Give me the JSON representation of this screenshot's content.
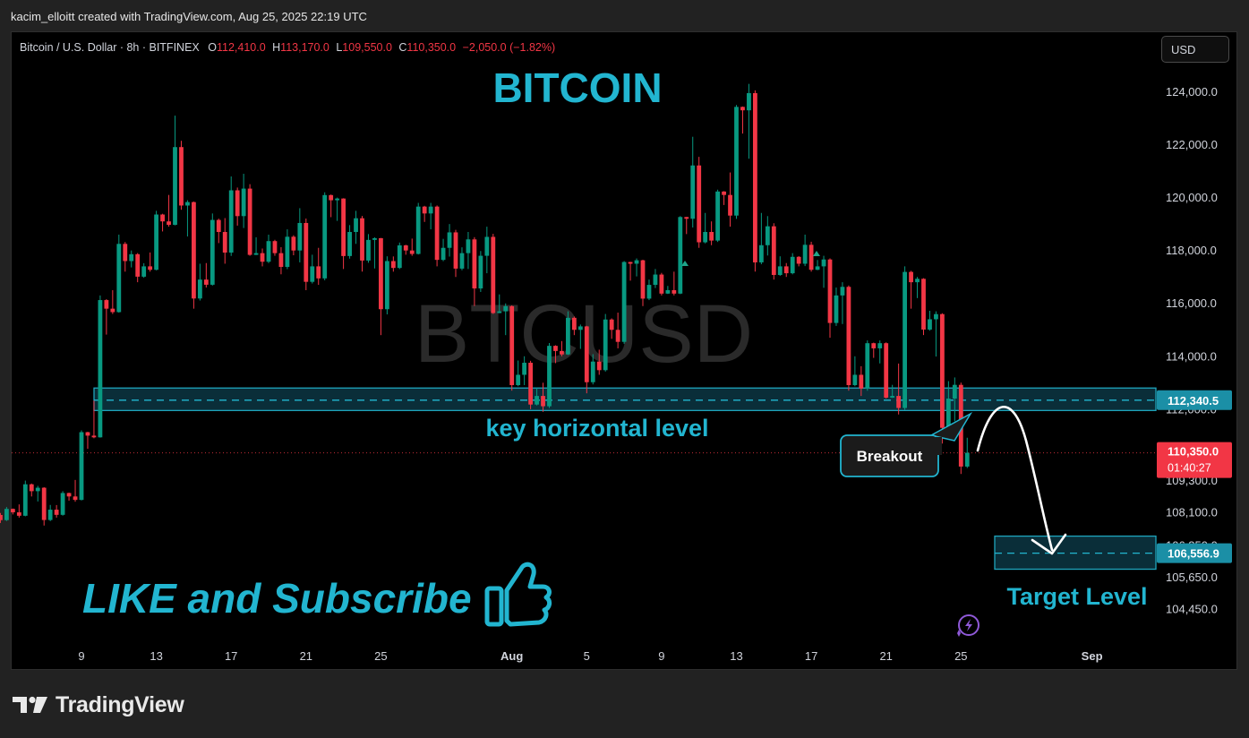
{
  "header": {
    "creator_line": "kacim_elloitt created with TradingView.com, Aug 25, 2025 22:19 UTC"
  },
  "legend": {
    "symbol": "Bitcoin / U.S. Dollar · 8h · BITFINEX",
    "open_label": "O",
    "open": "112,410.0",
    "high_label": "H",
    "high": "113,170.0",
    "low_label": "L",
    "low": "109,550.0",
    "close_label": "C",
    "close": "110,350.0",
    "change": "−2,050.0 (−1.82%)"
  },
  "currency_button": "USD",
  "annotations": {
    "title": "BITCOIN",
    "watermark": "BTCUSD",
    "key_level_label": "key horizontal level",
    "breakout_label": "Breakout",
    "target_label": "Target Level",
    "cta": "LIKE and Subscribe"
  },
  "price_tags": {
    "key_level": "112,340.5",
    "last_price": "110,350.0",
    "countdown": "01:40:27",
    "target": "106,556.9"
  },
  "footer": {
    "brand": "TradingView"
  },
  "colors": {
    "up": "#089981",
    "down": "#f23645",
    "accent": "#22b5d0",
    "zone_fill": "#0c3a47",
    "zone_border": "#1fa5bd"
  },
  "chart_data": {
    "type": "candlestick",
    "symbol": "BTCUSD",
    "interval": "8h",
    "y_axis": {
      "ticks": [
        124000,
        122000,
        120000,
        118000,
        116000,
        114000,
        112000,
        110500,
        109300,
        108100,
        106850,
        105650,
        104450
      ],
      "tick_labels": [
        "124,000.0",
        "122,000.0",
        "120,000.0",
        "118,000.0",
        "116,000.0",
        "114,000.0",
        "112,000.0",
        "110,500.0",
        "109,300.0",
        "108,100.0",
        "106,850.0",
        "105,650.0",
        "104,450.0"
      ],
      "range": [
        104000,
        125400
      ]
    },
    "x_axis": {
      "ticks": [
        "9",
        "13",
        "17",
        "21",
        "25",
        "Aug",
        "5",
        "9",
        "13",
        "17",
        "21",
        "25",
        "Sep"
      ],
      "range": [
        "Jul 5",
        "Sep 1"
      ]
    },
    "key_level": {
      "value": 112340.5,
      "zone": [
        111950,
        112800
      ]
    },
    "target_level": {
      "value": 106556.9,
      "zone": [
        105950,
        107200
      ]
    },
    "last_price": 110350.0,
    "candles_daily_approx": [
      {
        "date": "Jul 5",
        "open": 108000,
        "high": 108300,
        "low": 107700,
        "close": 108100
      },
      {
        "date": "Jul 6",
        "open": 108100,
        "high": 109300,
        "low": 107900,
        "close": 108900
      },
      {
        "date": "Jul 7",
        "open": 108900,
        "high": 109100,
        "low": 107600,
        "close": 108200
      },
      {
        "date": "Jul 8",
        "open": 108200,
        "high": 108900,
        "low": 107900,
        "close": 108700
      },
      {
        "date": "Jul 9",
        "open": 108700,
        "high": 111200,
        "low": 108500,
        "close": 111000
      },
      {
        "date": "Jul 10",
        "open": 111000,
        "high": 116300,
        "low": 110900,
        "close": 115800
      },
      {
        "date": "Jul 11",
        "open": 115800,
        "high": 118600,
        "low": 115600,
        "close": 117600
      },
      {
        "date": "Jul 12",
        "open": 117600,
        "high": 118000,
        "low": 116800,
        "close": 117400
      },
      {
        "date": "Jul 13",
        "open": 117400,
        "high": 119500,
        "low": 117200,
        "close": 119100
      },
      {
        "date": "Jul 14",
        "open": 119100,
        "high": 123100,
        "low": 118900,
        "close": 119700
      },
      {
        "date": "Jul 15",
        "open": 119700,
        "high": 119900,
        "low": 115800,
        "close": 116900
      },
      {
        "date": "Jul 16",
        "open": 116900,
        "high": 119400,
        "low": 116600,
        "close": 118700
      },
      {
        "date": "Jul 17",
        "open": 118700,
        "high": 120800,
        "low": 117500,
        "close": 119300
      },
      {
        "date": "Jul 18",
        "open": 119300,
        "high": 120900,
        "low": 117800,
        "close": 117900
      },
      {
        "date": "Jul 19",
        "open": 117900,
        "high": 118600,
        "low": 117400,
        "close": 117900
      },
      {
        "date": "Jul 20",
        "open": 117900,
        "high": 118800,
        "low": 117100,
        "close": 118000
      },
      {
        "date": "Jul 21",
        "open": 118000,
        "high": 119600,
        "low": 116500,
        "close": 117400
      },
      {
        "date": "Jul 22",
        "open": 117400,
        "high": 120200,
        "low": 116700,
        "close": 119900
      },
      {
        "date": "Jul 23",
        "open": 119900,
        "high": 120000,
        "low": 117300,
        "close": 118700
      },
      {
        "date": "Jul 24",
        "open": 118700,
        "high": 119500,
        "low": 117200,
        "close": 118400
      },
      {
        "date": "Jul 25",
        "open": 118400,
        "high": 118500,
        "low": 114800,
        "close": 117600
      },
      {
        "date": "Jul 26",
        "open": 117600,
        "high": 118300,
        "low": 117200,
        "close": 118000
      },
      {
        "date": "Jul 27",
        "open": 118000,
        "high": 119800,
        "low": 117800,
        "close": 119400
      },
      {
        "date": "Jul 28",
        "open": 119400,
        "high": 119800,
        "low": 117400,
        "close": 118100
      },
      {
        "date": "Jul 29",
        "open": 118100,
        "high": 119000,
        "low": 117000,
        "close": 117900
      },
      {
        "date": "Jul 30",
        "open": 117900,
        "high": 118700,
        "low": 115900,
        "close": 117800
      },
      {
        "date": "Jul 31",
        "open": 117800,
        "high": 118900,
        "low": 115600,
        "close": 115700
      },
      {
        "date": "Aug 1",
        "open": 115700,
        "high": 116000,
        "low": 112700,
        "close": 113300
      },
      {
        "date": "Aug 2",
        "open": 113300,
        "high": 114000,
        "low": 112000,
        "close": 112500
      },
      {
        "date": "Aug 3",
        "open": 112500,
        "high": 114500,
        "low": 111900,
        "close": 114200
      },
      {
        "date": "Aug 4",
        "open": 114200,
        "high": 115700,
        "low": 114000,
        "close": 115000
      },
      {
        "date": "Aug 5",
        "open": 115000,
        "high": 115200,
        "low": 112600,
        "close": 113800
      },
      {
        "date": "Aug 6",
        "open": 113800,
        "high": 115600,
        "low": 113300,
        "close": 115000
      },
      {
        "date": "Aug 7",
        "open": 115000,
        "high": 117600,
        "low": 114300,
        "close": 117500
      },
      {
        "date": "Aug 8",
        "open": 117500,
        "high": 117700,
        "low": 115900,
        "close": 116700
      },
      {
        "date": "Aug 9",
        "open": 116700,
        "high": 117300,
        "low": 116300,
        "close": 116500
      },
      {
        "date": "Aug 10",
        "open": 116500,
        "high": 119300,
        "low": 116300,
        "close": 119200
      },
      {
        "date": "Aug 11",
        "open": 119200,
        "high": 122300,
        "low": 118100,
        "close": 118700
      },
      {
        "date": "Aug 12",
        "open": 118700,
        "high": 120300,
        "low": 118200,
        "close": 120100
      },
      {
        "date": "Aug 13",
        "open": 120100,
        "high": 123500,
        "low": 118900,
        "close": 123300
      },
      {
        "date": "Aug 14",
        "open": 123300,
        "high": 124300,
        "low": 117200,
        "close": 118200
      },
      {
        "date": "Aug 15",
        "open": 118200,
        "high": 119300,
        "low": 116900,
        "close": 117400
      },
      {
        "date": "Aug 16",
        "open": 117400,
        "high": 117900,
        "low": 117000,
        "close": 117500
      },
      {
        "date": "Aug 17",
        "open": 117500,
        "high": 118600,
        "low": 117200,
        "close": 117400
      },
      {
        "date": "Aug 18",
        "open": 117400,
        "high": 117800,
        "low": 114700,
        "close": 116300
      },
      {
        "date": "Aug 19",
        "open": 116300,
        "high": 116800,
        "low": 112700,
        "close": 113300
      },
      {
        "date": "Aug 20",
        "open": 113300,
        "high": 114600,
        "low": 112500,
        "close": 114300
      },
      {
        "date": "Aug 21",
        "open": 114300,
        "high": 114600,
        "low": 112400,
        "close": 112500
      },
      {
        "date": "Aug 22",
        "open": 112500,
        "high": 117400,
        "low": 111800,
        "close": 116800
      },
      {
        "date": "Aug 23",
        "open": 116800,
        "high": 117000,
        "low": 114800,
        "close": 115400
      },
      {
        "date": "Aug 24",
        "open": 115400,
        "high": 115700,
        "low": 110700,
        "close": 112400
      },
      {
        "date": "Aug 25",
        "open": 112400,
        "high": 113200,
        "low": 109550,
        "close": 110350
      }
    ]
  }
}
